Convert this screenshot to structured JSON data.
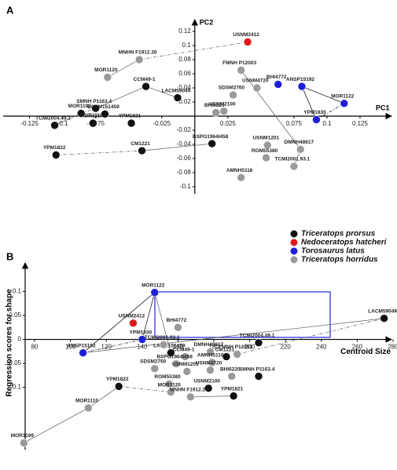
{
  "chart_data": [
    {
      "type": "scatter",
      "panel": "A",
      "xlabel": "PC1",
      "ylabel": "PC2",
      "xlim": [
        -0.145,
        0.15
      ],
      "ylim": [
        -0.11,
        0.13
      ],
      "xticks": [
        -0.125,
        -0.1,
        -0.075,
        -0.025,
        0.025,
        0.075,
        0.1,
        0.125
      ],
      "yticks": [
        0.12,
        0.1,
        0.08,
        0.06,
        0.04,
        0.02,
        -0.02,
        -0.04,
        -0.06,
        -0.08,
        -0.1
      ],
      "series": [
        {
          "color": "#111111",
          "labels": [
            "CCM49-1",
            "LACM59049",
            "SMNH P1163.4",
            "MOR1199",
            "LACM151459",
            "MOR1110",
            "YPM1821",
            "TCMI2004.49.1",
            "YPM1822",
            "CM1221",
            "BSPG1964I458"
          ],
          "x": [
            -0.037,
            -0.013,
            -0.075,
            -0.086,
            -0.068,
            -0.077,
            -0.048,
            -0.106,
            -0.105,
            -0.04,
            0.013
          ],
          "values": [
            0.042,
            0.026,
            0.011,
            0.004,
            0.003,
            -0.01,
            -0.01,
            -0.013,
            -0.055,
            -0.049,
            -0.039
          ]
        },
        {
          "color": "#e0191b",
          "labels": [
            "USNM2412"
          ],
          "x": [
            0.04
          ],
          "values": [
            0.105
          ]
        },
        {
          "color": "#1f1fd6",
          "labels": [
            "BHI4772",
            "ANSP15192",
            "MOR1122",
            "YPM1830"
          ],
          "x": [
            0.063,
            0.081,
            0.113,
            0.092
          ],
          "values": [
            0.045,
            0.042,
            0.018,
            -0.005
          ]
        },
        {
          "color": "#9a9a9a",
          "labels": [
            "FMNH P12003",
            "SDSM2760",
            "USNM4720",
            "USNM2100",
            "BHI6220",
            "MNHN F1912.20",
            "MOR1120",
            "USNM1201",
            "ROM55380",
            "DMNH48617",
            "TCMI2001.93.1",
            "AMNH5116"
          ],
          "x": [
            0.035,
            0.029,
            0.047,
            0.022,
            0.016,
            -0.042,
            -0.066,
            0.055,
            0.054,
            0.08,
            0.075,
            0.035
          ],
          "values": [
            0.065,
            0.03,
            0.04,
            0.007,
            0.005,
            0.08,
            0.055,
            -0.041,
            -0.059,
            -0.047,
            -0.071,
            -0.087
          ]
        }
      ]
    },
    {
      "type": "scatter",
      "panel": "B",
      "xlabel": "Centroid Size",
      "ylabel": "Regression scores for shape",
      "xlim": [
        62,
        280
      ],
      "ylim": [
        -0.23,
        0.15
      ],
      "xticks": [
        80,
        100,
        120,
        140,
        160,
        180,
        200,
        220,
        240,
        260,
        280
      ],
      "yticks": [
        0.1,
        0.05,
        0,
        -0.05,
        -0.1
      ],
      "legend": "top-right",
      "series": [
        {
          "name": "Triceratops prorsus",
          "color": "#111111",
          "labels": [
            "LACM59049",
            "LACM151459",
            "CM1221",
            "TCMI2004.49.1",
            "YPM1822",
            "YPM1821",
            "SMNH P1163.4",
            "USNM2100"
          ],
          "x": [
            275,
            156,
            187,
            205,
            127,
            191,
            205,
            177
          ],
          "values": [
            0.044,
            -0.028,
            -0.036,
            -0.007,
            -0.098,
            -0.118,
            -0.077,
            -0.102
          ]
        },
        {
          "name": "Nedoceratops hatcheri",
          "color": "#e0191b",
          "labels": [
            "USNM2412"
          ],
          "x": [
            135
          ],
          "values": [
            0.034
          ]
        },
        {
          "name": "Torosaurus latus",
          "color": "#1f1fd6",
          "labels": [
            "MOR1122",
            "YPM1830",
            "ANSP15192"
          ],
          "x": [
            147,
            140,
            107
          ],
          "values": [
            0.098,
            0,
            -0.028
          ]
        },
        {
          "name": "Triceratops horridus",
          "color": "#9a9a9a",
          "labels": [
            "BHI4772",
            "TCMI2001.93.1",
            "CCM49-1",
            "DMNH48617",
            "FMNH P12003",
            "AMNH5116",
            "SDSM2760",
            "BSPG1964I458",
            "USNM1201",
            "USNM4720",
            "BHI6220",
            "ROM55380",
            "MOR1120",
            "MNHN F1912.20",
            "MOR1110",
            "MOR1199"
          ],
          "x": [
            160,
            152,
            164,
            178,
            193,
            179,
            147,
            159,
            165,
            178,
            190,
            155,
            156,
            167,
            110,
            74
          ],
          "values": [
            0.025,
            -0.011,
            -0.036,
            -0.026,
            -0.031,
            -0.048,
            -0.061,
            -0.051,
            -0.067,
            -0.064,
            -0.077,
            -0.093,
            -0.11,
            -0.12,
            -0.143,
            -0.216
          ]
        }
      ]
    }
  ]
}
